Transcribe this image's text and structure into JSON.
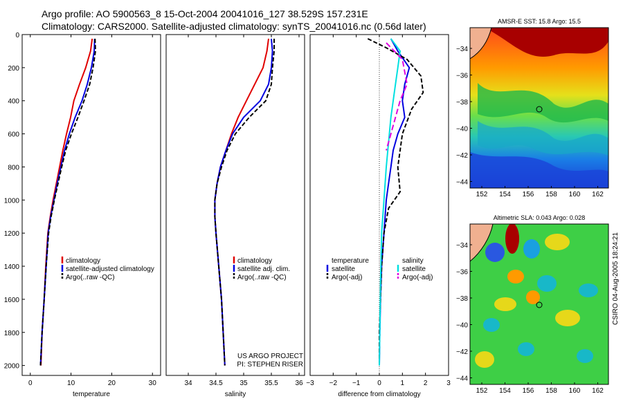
{
  "header": {
    "line1": "Argo profile: AO 5900563_8 15-Oct-2004 20041016_127 38.529S 157.231E",
    "line2": "Climatology: CARS2000. Satellite-adjusted climatology: synTS_20041016.nc (0.56d later)"
  },
  "stamp": "CSIRO 04-Aug-2005 18:24:21",
  "colors": {
    "climatology": "#e00000",
    "satellite": "#0000e0",
    "argo": "#000000",
    "cyan": "#00e0e0",
    "magenta": "#e000e0"
  },
  "chart_data": [
    {
      "type": "line",
      "xlabel": "temperature",
      "ylabel": "",
      "xlim": [
        -2,
        32
      ],
      "ylim": [
        2060,
        0
      ],
      "xticks": [
        0,
        10,
        20,
        30
      ],
      "yticks": [
        0,
        200,
        400,
        600,
        800,
        1000,
        1200,
        1400,
        1600,
        1800,
        2000
      ],
      "legend": [
        "climatology",
        "satellite-adjusted climatology",
        "Argo(..raw -QC)"
      ],
      "series": [
        {
          "name": "climatology",
          "color": "#e00000",
          "dash": "",
          "points": [
            [
              15.2,
              25
            ],
            [
              14.8,
              100
            ],
            [
              13.6,
              200
            ],
            [
              12.1,
              300
            ],
            [
              10.7,
              400
            ],
            [
              9.9,
              500
            ],
            [
              8.9,
              600
            ],
            [
              8.0,
              700
            ],
            [
              7.2,
              800
            ],
            [
              6.4,
              900
            ],
            [
              5.6,
              1000
            ],
            [
              4.9,
              1100
            ],
            [
              4.3,
              1200
            ],
            [
              3.8,
              1400
            ],
            [
              3.4,
              1600
            ],
            [
              2.9,
              1800
            ],
            [
              2.6,
              2000
            ]
          ]
        },
        {
          "name": "satellite-adjusted climatology",
          "color": "#0000e0",
          "dash": "",
          "points": [
            [
              15.8,
              25
            ],
            [
              15.7,
              100
            ],
            [
              15.0,
              200
            ],
            [
              14.0,
              300
            ],
            [
              12.7,
              400
            ],
            [
              11.0,
              500
            ],
            [
              9.6,
              600
            ],
            [
              8.4,
              700
            ],
            [
              7.5,
              800
            ],
            [
              6.6,
              900
            ],
            [
              5.8,
              1000
            ],
            [
              5.0,
              1100
            ],
            [
              4.4,
              1200
            ],
            [
              3.9,
              1400
            ],
            [
              3.4,
              1600
            ],
            [
              2.9,
              1800
            ],
            [
              2.5,
              2000
            ]
          ]
        },
        {
          "name": "Argo(..raw -QC)",
          "color": "#000000",
          "dash": "6,3",
          "points": [
            [
              15.9,
              25
            ],
            [
              16.0,
              100
            ],
            [
              15.4,
              200
            ],
            [
              14.6,
              300
            ],
            [
              13.2,
              400
            ],
            [
              11.7,
              500
            ],
            [
              10.1,
              600
            ],
            [
              8.7,
              700
            ],
            [
              7.7,
              800
            ],
            [
              6.8,
              900
            ],
            [
              5.9,
              1000
            ],
            [
              5.1,
              1100
            ],
            [
              4.5,
              1200
            ],
            [
              3.9,
              1400
            ],
            [
              3.4,
              1600
            ],
            [
              2.9,
              1800
            ],
            [
              2.5,
              2000
            ]
          ]
        }
      ]
    },
    {
      "type": "line",
      "xlabel": "salinity",
      "ylabel": "",
      "xlim": [
        33.6,
        36.1
      ],
      "ylim": [
        2060,
        0
      ],
      "xticks": [
        34,
        34.5,
        35,
        35.5,
        36
      ],
      "xticklabels": [
        "34",
        "34.5",
        "35",
        "35.5",
        "36"
      ],
      "legend": [
        "climatology",
        "satellite adj. clim.",
        "Argo(..raw -QC)"
      ],
      "annotation": [
        "US ARGO PROJECT",
        "PI: STEPHEN RISER"
      ],
      "series": [
        {
          "name": "climatology",
          "color": "#e00000",
          "dash": "",
          "points": [
            [
              35.45,
              25
            ],
            [
              35.42,
              100
            ],
            [
              35.35,
              200
            ],
            [
              35.2,
              300
            ],
            [
              35.05,
              400
            ],
            [
              34.9,
              500
            ],
            [
              34.78,
              600
            ],
            [
              34.68,
              700
            ],
            [
              34.58,
              800
            ],
            [
              34.52,
              900
            ],
            [
              34.48,
              1000
            ],
            [
              34.48,
              1100
            ],
            [
              34.5,
              1200
            ],
            [
              34.55,
              1400
            ],
            [
              34.6,
              1600
            ],
            [
              34.63,
              1800
            ],
            [
              34.66,
              2000
            ]
          ]
        },
        {
          "name": "satellite adj. clim.",
          "color": "#0000e0",
          "dash": "",
          "points": [
            [
              35.5,
              25
            ],
            [
              35.52,
              100
            ],
            [
              35.5,
              200
            ],
            [
              35.45,
              300
            ],
            [
              35.3,
              400
            ],
            [
              35.0,
              500
            ],
            [
              34.8,
              600
            ],
            [
              34.68,
              700
            ],
            [
              34.58,
              800
            ],
            [
              34.52,
              900
            ],
            [
              34.48,
              1000
            ],
            [
              34.48,
              1100
            ],
            [
              34.5,
              1200
            ],
            [
              34.55,
              1400
            ],
            [
              34.6,
              1600
            ],
            [
              34.63,
              1800
            ],
            [
              34.66,
              2000
            ]
          ]
        },
        {
          "name": "Argo(..raw -QC)",
          "color": "#000000",
          "dash": "6,3",
          "points": [
            [
              35.55,
              25
            ],
            [
              35.55,
              100
            ],
            [
              35.52,
              200
            ],
            [
              35.5,
              300
            ],
            [
              35.4,
              400
            ],
            [
              35.1,
              500
            ],
            [
              34.85,
              600
            ],
            [
              34.7,
              700
            ],
            [
              34.6,
              800
            ],
            [
              34.52,
              900
            ],
            [
              34.48,
              1000
            ],
            [
              34.48,
              1100
            ],
            [
              34.5,
              1200
            ],
            [
              34.55,
              1400
            ],
            [
              34.6,
              1600
            ],
            [
              34.63,
              1800
            ],
            [
              34.66,
              2000
            ]
          ]
        }
      ]
    },
    {
      "type": "line",
      "xlabel": "difference from climatology",
      "ylabel": "",
      "xlim": [
        -3,
        3
      ],
      "ylim": [
        2060,
        0
      ],
      "xticks": [
        -3,
        -2,
        -1,
        0,
        1,
        2,
        3
      ],
      "zero_line": 0,
      "legend_left": [
        "temperature",
        "satellite",
        "Argo(-adj)"
      ],
      "legend_right": [
        "salinity",
        "satellite",
        "Argo(-adj)"
      ],
      "series": [
        {
          "name": "temperature satellite",
          "color": "#0000e0",
          "dash": "",
          "points": [
            [
              0.5,
              25
            ],
            [
              0.8,
              100
            ],
            [
              1.3,
              200
            ],
            [
              1.1,
              300
            ],
            [
              1.0,
              400
            ],
            [
              1.1,
              500
            ],
            [
              0.8,
              600
            ],
            [
              0.6,
              700
            ],
            [
              0.5,
              800
            ],
            [
              0.4,
              900
            ],
            [
              0.3,
              1000
            ],
            [
              0.2,
              1200
            ],
            [
              0.1,
              1400
            ],
            [
              0.05,
              1600
            ],
            [
              0.02,
              1800
            ],
            [
              0.0,
              2000
            ]
          ]
        },
        {
          "name": "temperature Argo(-adj)",
          "color": "#000000",
          "dash": "6,3",
          "points": [
            [
              -0.5,
              25
            ],
            [
              0.3,
              80
            ],
            [
              1.2,
              150
            ],
            [
              1.8,
              250
            ],
            [
              1.9,
              350
            ],
            [
              1.4,
              450
            ],
            [
              1.0,
              600
            ],
            [
              0.8,
              800
            ],
            [
              0.9,
              950
            ],
            [
              0.4,
              1050
            ],
            [
              0.2,
              1200
            ],
            [
              0.1,
              1400
            ],
            [
              0.05,
              1600
            ],
            [
              0.0,
              1800
            ],
            [
              0.0,
              2000
            ]
          ]
        },
        {
          "name": "salinity satellite",
          "color": "#00e0e0",
          "dash": "",
          "points": [
            [
              0.5,
              25
            ],
            [
              0.9,
              100
            ],
            [
              0.8,
              200
            ],
            [
              0.7,
              300
            ],
            [
              0.5,
              500
            ],
            [
              0.3,
              800
            ],
            [
              0.2,
              1000
            ],
            [
              0.1,
              1200
            ],
            [
              0.05,
              1500
            ],
            [
              0.0,
              2000
            ]
          ]
        },
        {
          "name": "salinity Argo(-adj)",
          "color": "#e000e0",
          "dash": "8,4",
          "points": [
            [
              0.3,
              50
            ],
            [
              1.0,
              150
            ],
            [
              1.2,
              300
            ],
            [
              0.9,
              400
            ],
            [
              0.5,
              600
            ],
            [
              0.3,
              700
            ]
          ]
        }
      ]
    }
  ],
  "maps": [
    {
      "title": "AMSR-E SST: 15.8 Argo: 15.5",
      "xticks": [
        "152",
        "154",
        "156",
        "158",
        "160",
        "162"
      ],
      "yticks": [
        "-34",
        "-36",
        "-38",
        "-40",
        "-42",
        "-44"
      ]
    },
    {
      "title": "Altimetric SLA: 0.043 Argo: 0.028",
      "xticks": [
        "152",
        "154",
        "156",
        "158",
        "160",
        "162"
      ],
      "yticks": [
        "-34",
        "-36",
        "-38",
        "-40",
        "-42",
        "-44"
      ]
    }
  ]
}
